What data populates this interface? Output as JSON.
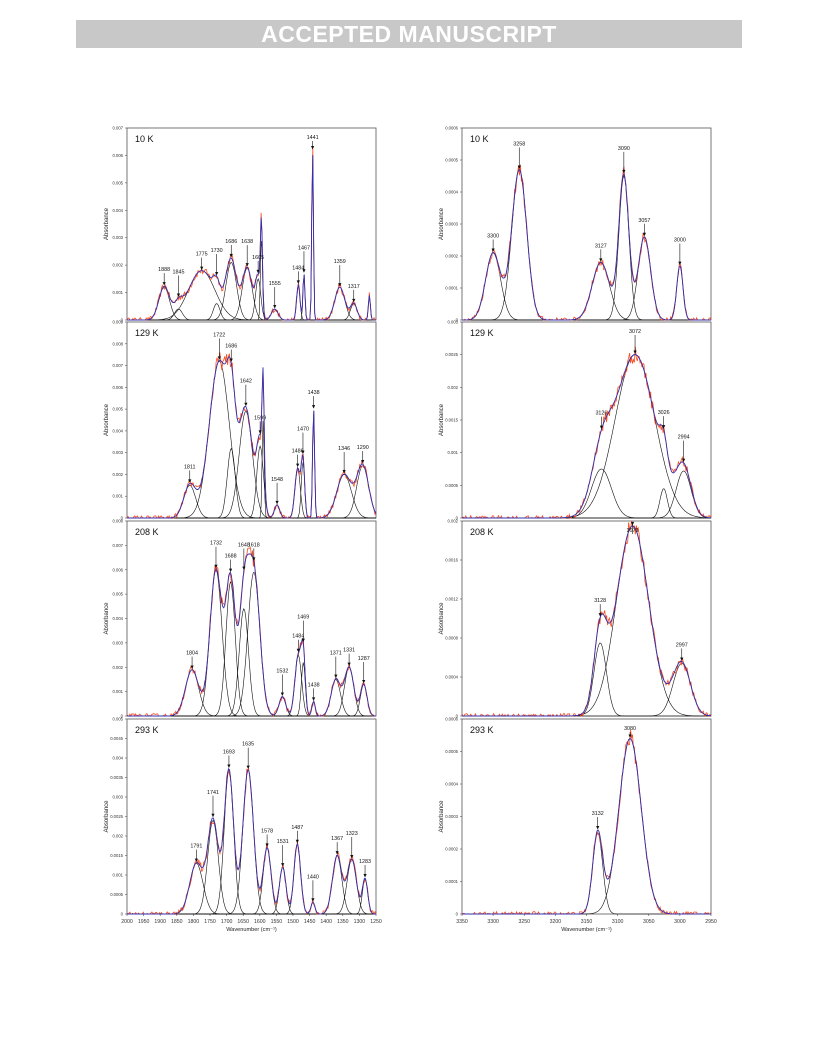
{
  "banner": {
    "text": "ACCEPTED MANUSCRIPT"
  },
  "figure": {
    "ylabel": "Absorbance",
    "xlabel_left": "Wavenumber (cm⁻¹)",
    "xlabel_right": "Wavenumber (cm⁻¹)",
    "colors": {
      "measured": "#ff4a1c",
      "fit": "#3030b0",
      "component": "#111111",
      "banner": "#c8c8c8"
    }
  },
  "chart_data": [
    {
      "type": "line",
      "title": "10 K",
      "xlim": [
        2000,
        1250
      ],
      "ylim": [
        0,
        0.007
      ],
      "yticks": [
        "0",
        "0.001",
        "0.002",
        "0.003",
        "0.004",
        "0.005",
        "0.006",
        "0.007"
      ],
      "xticks": [],
      "components": [
        [
          1888,
          0.0012,
          16
        ],
        [
          1845,
          0.0004,
          12
        ],
        [
          1775,
          0.0018,
          40
        ],
        [
          1730,
          0.0006,
          10
        ],
        [
          1686,
          0.0021,
          16
        ],
        [
          1638,
          0.0019,
          15
        ],
        [
          1605,
          0.0015,
          8
        ],
        [
          1595,
          0.0031,
          3
        ],
        [
          1555,
          0.0004,
          10
        ],
        [
          1484,
          0.0013,
          5
        ],
        [
          1467,
          0.0017,
          3
        ],
        [
          1441,
          0.0062,
          2.5
        ],
        [
          1359,
          0.0012,
          15
        ],
        [
          1317,
          0.0006,
          10
        ],
        [
          1270,
          0.0009,
          3
        ]
      ],
      "peak_labels": [
        {
          "x": 1888,
          "text": "1888"
        },
        {
          "x": 1845,
          "text": "1845"
        },
        {
          "x": 1775,
          "text": "1775"
        },
        {
          "x": 1730,
          "text": "1730"
        },
        {
          "x": 1686,
          "text": "1686"
        },
        {
          "x": 1638,
          "text": "1638"
        },
        {
          "x": 1605,
          "text": "1605"
        },
        {
          "x": 1555,
          "text": "1555"
        },
        {
          "x": 1484,
          "text": "1484"
        },
        {
          "x": 1467,
          "text": "1467"
        },
        {
          "x": 1441,
          "text": "1441"
        },
        {
          "x": 1359,
          "text": "1359"
        },
        {
          "x": 1317,
          "text": "1317"
        }
      ]
    },
    {
      "type": "line",
      "title": "10 K",
      "xlim": [
        3350,
        2950
      ],
      "ylim": [
        0,
        0.0006
      ],
      "yticks": [
        "0",
        "0.0001",
        "0.0002",
        "0.0003",
        "0.0004",
        "0.0005",
        "0.0006"
      ],
      "xticks": [],
      "components": [
        [
          3300,
          0.00021,
          12
        ],
        [
          3258,
          0.00047,
          12
        ],
        [
          3127,
          0.00018,
          14
        ],
        [
          3090,
          0.00045,
          8
        ],
        [
          3057,
          0.00026,
          10
        ],
        [
          3000,
          0.00017,
          5
        ]
      ],
      "peak_labels": [
        {
          "x": 3300,
          "text": "3300"
        },
        {
          "x": 3258,
          "text": "3258"
        },
        {
          "x": 3127,
          "text": "3127"
        },
        {
          "x": 3090,
          "text": "3090"
        },
        {
          "x": 3057,
          "text": "3057"
        },
        {
          "x": 3000,
          "text": "3000"
        }
      ]
    },
    {
      "type": "line",
      "title": "129 K",
      "xlim": [
        2000,
        1250
      ],
      "ylim": [
        0,
        0.009
      ],
      "yticks": [
        "0",
        "0.001",
        "0.002",
        "0.003",
        "0.004",
        "0.005",
        "0.006",
        "0.007",
        "0.008",
        "0.009"
      ],
      "xticks": [],
      "components": [
        [
          1811,
          0.0015,
          18
        ],
        [
          1722,
          0.0072,
          30
        ],
        [
          1686,
          0.0032,
          12
        ],
        [
          1642,
          0.0049,
          20
        ],
        [
          1599,
          0.0033,
          10
        ],
        [
          1590,
          0.0045,
          3
        ],
        [
          1548,
          0.0006,
          8
        ],
        [
          1486,
          0.0023,
          8
        ],
        [
          1470,
          0.0026,
          5
        ],
        [
          1438,
          0.005,
          3
        ],
        [
          1346,
          0.002,
          22
        ],
        [
          1290,
          0.0024,
          18
        ]
      ],
      "peak_labels": [
        {
          "x": 1811,
          "text": "1811"
        },
        {
          "x": 1722,
          "text": "1722"
        },
        {
          "x": 1686,
          "text": "1686"
        },
        {
          "x": 1642,
          "text": "1642"
        },
        {
          "x": 1599,
          "text": "1599"
        },
        {
          "x": 1548,
          "text": "1548"
        },
        {
          "x": 1486,
          "text": "1486"
        },
        {
          "x": 1470,
          "text": "1470"
        },
        {
          "x": 1438,
          "text": "1438"
        },
        {
          "x": 1346,
          "text": "1346"
        },
        {
          "x": 1290,
          "text": "1290"
        }
      ]
    },
    {
      "type": "line",
      "title": "129 K",
      "xlim": [
        3350,
        2950
      ],
      "ylim": [
        0,
        0.003
      ],
      "yticks": [
        "0",
        "0.0005",
        "0.001",
        "0.0015",
        "0.002",
        "0.0025",
        "0.003"
      ],
      "xticks": [],
      "components": [
        [
          3126,
          0.00075,
          16
        ],
        [
          3072,
          0.0025,
          32
        ],
        [
          3026,
          0.00045,
          6
        ],
        [
          2994,
          0.00072,
          12
        ]
      ],
      "peak_labels": [
        {
          "x": 3126,
          "text": "3126"
        },
        {
          "x": 3072,
          "text": "3072"
        },
        {
          "x": 3026,
          "text": "3026"
        },
        {
          "x": 2994,
          "text": "2994"
        }
      ]
    },
    {
      "type": "line",
      "title": "208 K",
      "xlim": [
        2000,
        1250
      ],
      "ylim": [
        0,
        0.008
      ],
      "yticks": [
        "0",
        "0.001",
        "0.002",
        "0.003",
        "0.004",
        "0.005",
        "0.006",
        "0.007",
        "0.008"
      ],
      "xticks": [],
      "components": [
        [
          1804,
          0.0019,
          20
        ],
        [
          1732,
          0.006,
          18
        ],
        [
          1688,
          0.0055,
          14
        ],
        [
          1648,
          0.0044,
          14
        ],
        [
          1618,
          0.0059,
          18
        ],
        [
          1532,
          0.0008,
          10
        ],
        [
          1484,
          0.0025,
          10
        ],
        [
          1469,
          0.0022,
          6
        ],
        [
          1438,
          0.0006,
          5
        ],
        [
          1371,
          0.0015,
          14
        ],
        [
          1331,
          0.002,
          14
        ],
        [
          1287,
          0.0013,
          10
        ]
      ],
      "peak_labels": [
        {
          "x": 1804,
          "text": "1804"
        },
        {
          "x": 1732,
          "text": "1732"
        },
        {
          "x": 1688,
          "text": "1688"
        },
        {
          "x": 1648,
          "text": "1648"
        },
        {
          "x": 1618,
          "text": "1618"
        },
        {
          "x": 1532,
          "text": "1532"
        },
        {
          "x": 1484,
          "text": "1484"
        },
        {
          "x": 1469,
          "text": "1469"
        },
        {
          "x": 1438,
          "text": "1438"
        },
        {
          "x": 1371,
          "text": "1371"
        },
        {
          "x": 1331,
          "text": "1331"
        },
        {
          "x": 1287,
          "text": "1287"
        }
      ]
    },
    {
      "type": "line",
      "title": "208 K",
      "xlim": [
        3350,
        2950
      ],
      "ylim": [
        0,
        0.002
      ],
      "yticks": [
        "0",
        "0.0004",
        "0.0008",
        "0.0012",
        "0.0016",
        "0.002"
      ],
      "xticks": [],
      "components": [
        [
          3128,
          0.00075,
          10
        ],
        [
          3076,
          0.00195,
          26
        ],
        [
          2997,
          0.00054,
          14
        ]
      ],
      "peak_labels": [
        {
          "x": 3128,
          "text": "3128"
        },
        {
          "x": 3076,
          "text": "3076"
        },
        {
          "x": 2997,
          "text": "2997"
        }
      ]
    },
    {
      "type": "line",
      "title": "293 K",
      "xlim": [
        2000,
        1250
      ],
      "ylim": [
        0,
        0.005
      ],
      "yticks": [
        "0",
        "0.0005",
        "0.001",
        "0.0015",
        "0.002",
        "0.0025",
        "0.003",
        "0.0035",
        "0.004",
        "0.0045",
        "0.005"
      ],
      "xticks": [
        "2000",
        "1950",
        "1900",
        "1850",
        "1800",
        "1750",
        "1700",
        "1650",
        "1600",
        "1550",
        "1500",
        "1450",
        "1400",
        "1350",
        "1300",
        "1250"
      ],
      "components": [
        [
          1791,
          0.0013,
          20
        ],
        [
          1741,
          0.0024,
          16
        ],
        [
          1693,
          0.0037,
          14
        ],
        [
          1635,
          0.0037,
          16
        ],
        [
          1578,
          0.0017,
          12
        ],
        [
          1531,
          0.0012,
          10
        ],
        [
          1487,
          0.0018,
          10
        ],
        [
          1440,
          0.0003,
          6
        ],
        [
          1367,
          0.0015,
          14
        ],
        [
          1323,
          0.0014,
          14
        ],
        [
          1283,
          0.0009,
          8
        ]
      ],
      "peak_labels": [
        {
          "x": 1791,
          "text": "1791"
        },
        {
          "x": 1741,
          "text": "1741"
        },
        {
          "x": 1693,
          "text": "1693"
        },
        {
          "x": 1635,
          "text": "1635"
        },
        {
          "x": 1578,
          "text": "1578"
        },
        {
          "x": 1531,
          "text": "1531"
        },
        {
          "x": 1487,
          "text": "1487"
        },
        {
          "x": 1440,
          "text": "1440"
        },
        {
          "x": 1367,
          "text": "1367"
        },
        {
          "x": 1323,
          "text": "1323"
        },
        {
          "x": 1283,
          "text": "1283"
        }
      ]
    },
    {
      "type": "line",
      "title": "293 K",
      "xlim": [
        3350,
        2950
      ],
      "ylim": [
        0,
        0.0006
      ],
      "yticks": [
        "0",
        "0.0001",
        "0.0002",
        "0.0003",
        "0.0004",
        "0.0005",
        "0.0006"
      ],
      "xticks": [
        "3350",
        "3300",
        "3250",
        "3200",
        "3150",
        "3100",
        "3050",
        "3000",
        "2950"
      ],
      "components": [
        [
          3132,
          0.00025,
          8
        ],
        [
          3080,
          0.00054,
          18
        ]
      ],
      "peak_labels": [
        {
          "x": 3132,
          "text": "3132"
        },
        {
          "x": 3080,
          "text": "3080"
        }
      ]
    }
  ]
}
